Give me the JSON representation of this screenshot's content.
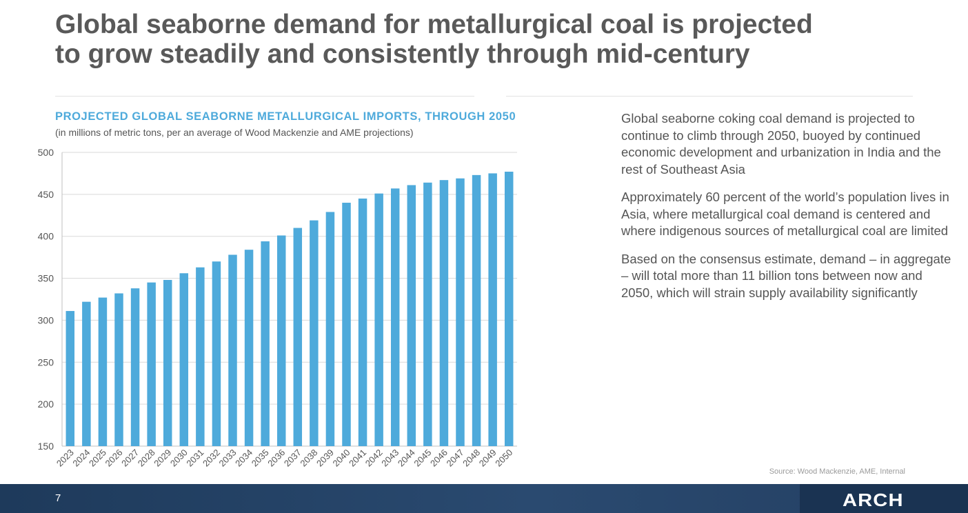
{
  "slide": {
    "title_line1": "Global seaborne demand for metallurgical coal is projected",
    "title_line2": "to grow steadily and consistently through mid-century",
    "source": "Source: Wood Mackenzie, AME, Internal",
    "page_number": "7",
    "logo": "ARCH"
  },
  "text_panel": {
    "paragraphs": [
      "Global seaborne coking coal demand is projected to continue to climb through 2050, buoyed by continued economic development and urbanization in India and the rest of Southeast Asia",
      "Approximately 60 percent of the world’s population lives in Asia, where metallurgical coal demand is centered and where indigenous sources of metallurgical coal are limited",
      "Based on the consensus estimate, demand – in aggregate – will total more than 11 billion tons between now and 2050, which will strain supply availability significantly"
    ]
  },
  "colors": {
    "bar": "#4eaadb",
    "title_blue": "#4eaadb",
    "footer": "#1e3a5b"
  },
  "chart_data": {
    "type": "bar",
    "title": "PROJECTED GLOBAL SEABORNE METALLURGICAL IMPORTS, THROUGH 2050",
    "subtitle": "(in millions of metric tons, per an average of Wood Mackenzie and AME projections)",
    "xlabel": "",
    "ylabel": "",
    "ylim": [
      150,
      500
    ],
    "yticks": [
      150,
      200,
      250,
      300,
      350,
      400,
      450,
      500
    ],
    "grid": true,
    "legend": "none",
    "categories": [
      "2023",
      "2024",
      "2025",
      "2026",
      "2027",
      "2028",
      "2029",
      "2030",
      "2031",
      "2032",
      "2033",
      "2034",
      "2035",
      "2036",
      "2037",
      "2038",
      "2039",
      "2040",
      "2041",
      "2042",
      "2043",
      "2044",
      "2045",
      "2046",
      "2047",
      "2048",
      "2049",
      "2050"
    ],
    "values": [
      311,
      322,
      327,
      332,
      338,
      345,
      348,
      356,
      363,
      370,
      378,
      384,
      394,
      401,
      410,
      419,
      429,
      440,
      445,
      451,
      457,
      461,
      464,
      467,
      469,
      473,
      475,
      477
    ]
  }
}
